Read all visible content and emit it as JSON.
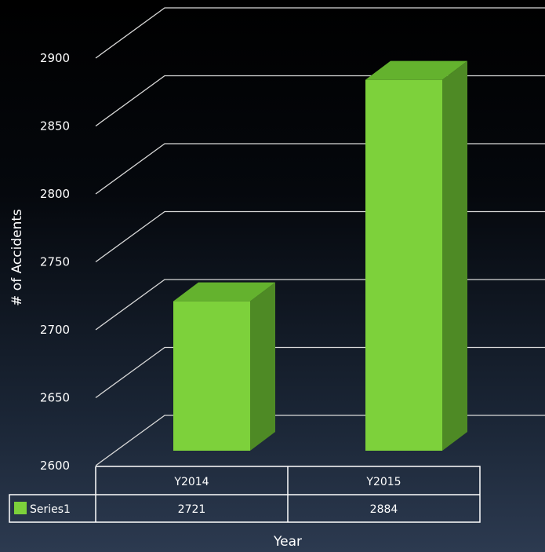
{
  "chart_data": {
    "type": "bar",
    "categories": [
      "Y2014",
      "Y2015"
    ],
    "series": [
      {
        "name": "Series1",
        "values": [
          2721,
          2884
        ]
      }
    ],
    "xlabel": "Year",
    "ylabel": "# of Accidents",
    "ylim": [
      2600,
      2950
    ],
    "yticks": [
      2600,
      2650,
      2700,
      2750,
      2800,
      2850,
      2900
    ],
    "grid": true,
    "data_table": true,
    "colors": {
      "bar_front": "#7dd13b",
      "bar_side": "#4e8a25",
      "bar_top": "#64b22e",
      "grid": "#d9d9d9",
      "text": "#ffffff"
    }
  }
}
